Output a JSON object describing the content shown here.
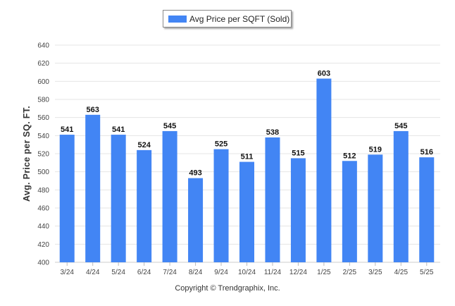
{
  "legend": {
    "label": "Avg Price per SQFT (Sold)",
    "color": "#4285f4"
  },
  "footer": {
    "copyright": "Copyright © Trendgraphix, Inc."
  },
  "chart_data": {
    "type": "bar",
    "categories": [
      "3/24",
      "4/24",
      "5/24",
      "6/24",
      "7/24",
      "8/24",
      "9/24",
      "10/24",
      "11/24",
      "12/24",
      "1/25",
      "2/25",
      "3/25",
      "4/25",
      "5/25"
    ],
    "series": [
      {
        "name": "Avg Price per SQFT (Sold)",
        "values": [
          541,
          563,
          541,
          524,
          545,
          493,
          525,
          511,
          538,
          515,
          603,
          512,
          519,
          545,
          516
        ]
      }
    ],
    "title": "",
    "xlabel": "",
    "ylabel": "Avg. Price per SQ. FT.",
    "ylim": [
      400,
      640
    ],
    "yticks": [
      400,
      420,
      440,
      460,
      480,
      500,
      520,
      540,
      560,
      580,
      600,
      620,
      640
    ],
    "grid": true,
    "legend_position": "top-center",
    "bar_color": "#4285f4"
  }
}
